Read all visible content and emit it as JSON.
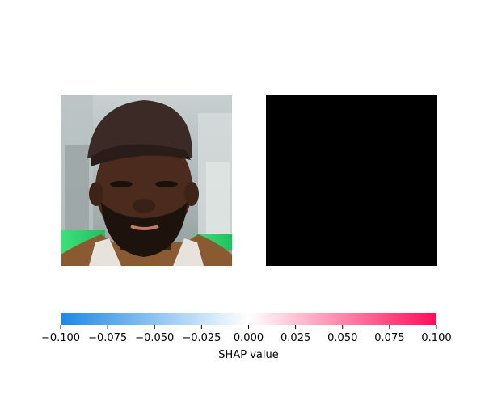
{
  "chart_data": {
    "type": "heatmap",
    "title": "",
    "panels": [
      {
        "name": "input image",
        "content": "photo-face"
      },
      {
        "name": "shap overlay",
        "content": "solid-black",
        "color": "#000000"
      }
    ],
    "colorbar": {
      "xlabel": "SHAP value",
      "xlim": [
        -0.1,
        0.1
      ],
      "ticks": [
        -0.1,
        -0.075,
        -0.05,
        -0.025,
        0.0,
        0.025,
        0.05,
        0.075,
        0.1
      ],
      "tick_labels": [
        "−0.100",
        "−0.075",
        "−0.050",
        "−0.025",
        "0.000",
        "0.025",
        "0.050",
        "0.075",
        "0.100"
      ],
      "colormap": [
        {
          "value": -0.1,
          "color": "#1e88e5"
        },
        {
          "value": 0.0,
          "color": "#ffffff"
        },
        {
          "value": 0.1,
          "color": "#ff0d57"
        }
      ]
    }
  }
}
